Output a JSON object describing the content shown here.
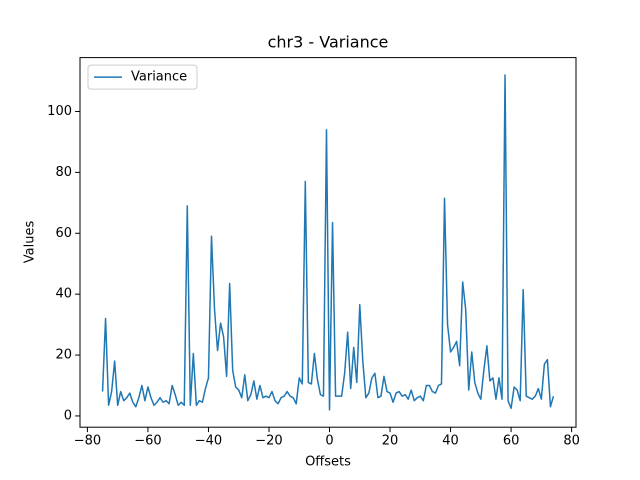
{
  "chart_data": {
    "type": "line",
    "title": "chr3 - Variance",
    "xlabel": "Offsets",
    "ylabel": "Values",
    "x": [
      -75,
      -74,
      -73,
      -72,
      -71,
      -70,
      -69,
      -68,
      -67,
      -66,
      -65,
      -64,
      -63,
      -62,
      -61,
      -60,
      -59,
      -58,
      -57,
      -56,
      -55,
      -54,
      -53,
      -52,
      -51,
      -50,
      -49,
      -48,
      -47,
      -46,
      -45,
      -44,
      -43,
      -42,
      -41,
      -40,
      -39,
      -38,
      -37,
      -36,
      -35,
      -34,
      -33,
      -32,
      -31,
      -30,
      -29,
      -28,
      -27,
      -26,
      -25,
      -24,
      -23,
      -22,
      -21,
      -20,
      -19,
      -18,
      -17,
      -16,
      -15,
      -14,
      -13,
      -12,
      -11,
      -10,
      -9,
      -8,
      -7,
      -6,
      -5,
      -4,
      -3,
      -2,
      -1,
      0,
      1,
      2,
      3,
      4,
      5,
      6,
      7,
      8,
      9,
      10,
      11,
      12,
      13,
      14,
      15,
      16,
      17,
      18,
      19,
      20,
      21,
      22,
      23,
      24,
      25,
      26,
      27,
      28,
      29,
      30,
      31,
      32,
      33,
      34,
      35,
      36,
      37,
      38,
      39,
      40,
      41,
      42,
      43,
      44,
      45,
      46,
      47,
      48,
      49,
      50,
      51,
      52,
      53,
      54,
      55,
      56,
      57,
      58,
      59,
      60,
      61,
      62,
      63,
      64,
      65,
      66,
      67,
      68,
      69,
      70,
      71,
      72,
      73,
      74
    ],
    "series": [
      {
        "name": "Variance",
        "color": "#1f77b4",
        "values": [
          8,
          32,
          3.5,
          8,
          18,
          3.5,
          8,
          5,
          6,
          7.5,
          4.5,
          3,
          6,
          10,
          5,
          9.5,
          6,
          3.5,
          4.5,
          6,
          4.5,
          5,
          4,
          10,
          7,
          3.5,
          4.5,
          3.5,
          69,
          3.5,
          20.5,
          3.5,
          5,
          4.5,
          9,
          12.5,
          59,
          35,
          21.5,
          30.5,
          26,
          13,
          43.5,
          15,
          9.5,
          8.5,
          6,
          13.5,
          5,
          7,
          11.5,
          5.5,
          10,
          6,
          6.5,
          6,
          8,
          5,
          4,
          6,
          6.5,
          8,
          6.5,
          6,
          4,
          12.5,
          10.5,
          77,
          11,
          10.5,
          20.5,
          12,
          7,
          6.5,
          94,
          2,
          63.5,
          6.5,
          6.5,
          6.5,
          14,
          27.5,
          9,
          22.5,
          11,
          36.5,
          18,
          6,
          7.5,
          12.5,
          14,
          6,
          6.5,
          13,
          8,
          7.5,
          4.5,
          7.5,
          8,
          6.5,
          7,
          5.5,
          8.5,
          5,
          6,
          6.5,
          5,
          10,
          10,
          8,
          7.5,
          10,
          10.5,
          71.5,
          30,
          21,
          22.5,
          24.5,
          16.5,
          44,
          35,
          8.5,
          21,
          11,
          7.5,
          5.5,
          15,
          23,
          11.5,
          12.5,
          5.5,
          12.5,
          5.5,
          112,
          5,
          2.5,
          9.5,
          8.5,
          5,
          41.5,
          6.5,
          6,
          5.5,
          6.5,
          9,
          5.5,
          17,
          18.5,
          3,
          6.5
        ]
      }
    ],
    "xlim": [
      -82.45,
      81.45
    ],
    "xticks": [
      {
        "value": -80,
        "label": "−80"
      },
      {
        "value": -60,
        "label": "−60"
      },
      {
        "value": -40,
        "label": "−40"
      },
      {
        "value": -20,
        "label": "−20"
      },
      0,
      20,
      40,
      60,
      80
    ],
    "ylim": [
      -3.7,
      117.7
    ],
    "yticks": [
      0,
      20,
      40,
      60,
      80,
      100
    ],
    "legend": "upper left"
  }
}
